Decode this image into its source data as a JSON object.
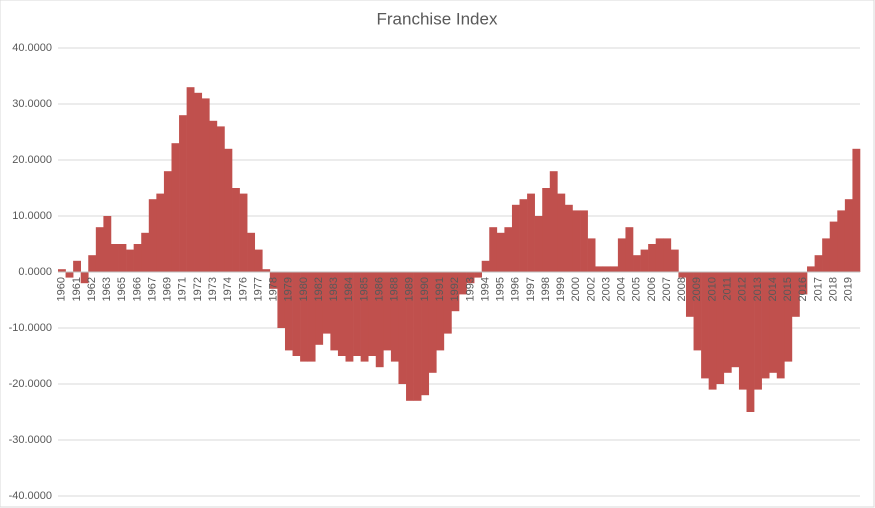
{
  "chart_data": {
    "type": "bar",
    "title": "Franchise Index",
    "categories": [
      "1960",
      null,
      "1961",
      null,
      "1962",
      null,
      "1963",
      null,
      "1965",
      null,
      "1966",
      null,
      "1967",
      null,
      "1969",
      null,
      "1971",
      null,
      "1972",
      null,
      "1973",
      null,
      "1974",
      null,
      "1976",
      null,
      "1977",
      null,
      "1978",
      null,
      "1979",
      null,
      "1980",
      null,
      "1982",
      null,
      "1983",
      null,
      "1984",
      null,
      "1985",
      null,
      "1986",
      null,
      "1988",
      null,
      "1989",
      null,
      "1990",
      null,
      "1991",
      null,
      "1992",
      null,
      "1993",
      null,
      "1994",
      null,
      "1995",
      null,
      "1996",
      null,
      "1997",
      null,
      "1998",
      null,
      "1999",
      null,
      "2000",
      null,
      "2002",
      null,
      "2003",
      null,
      "2004",
      null,
      "2005",
      null,
      "2006",
      null,
      "2007",
      null,
      "2008",
      null,
      "2009",
      null,
      "2010",
      null,
      "2011",
      null,
      "2012",
      null,
      "2013",
      null,
      "2014",
      null,
      "2015",
      null,
      "2016",
      null,
      "2017",
      null,
      "2018",
      null,
      "2019",
      null
    ],
    "values": [
      0.5,
      -1,
      2,
      -2,
      3,
      8,
      10,
      5,
      5,
      4,
      5,
      7,
      13,
      14,
      18,
      23,
      28,
      33,
      32,
      31,
      27,
      26,
      22,
      15,
      14,
      7,
      4,
      0.5,
      -3,
      -10,
      -14,
      -15,
      -16,
      -16,
      -13,
      -11,
      -14,
      -15,
      -16,
      -15,
      -16,
      -15,
      -17,
      -14,
      -16,
      -20,
      -23,
      -23,
      -22,
      -18,
      -14,
      -11,
      -7,
      -4,
      -2,
      -1,
      2,
      8,
      7,
      8,
      12,
      13,
      14,
      10,
      15,
      18,
      14,
      12,
      11,
      11,
      6,
      1,
      1,
      1,
      6,
      8,
      3,
      4,
      5,
      6,
      6,
      4,
      -1,
      -8,
      -14,
      -19,
      -21,
      -20,
      -18,
      -17,
      -21,
      -25,
      -21,
      -19,
      -18,
      -19,
      -16,
      -8,
      -4,
      1,
      3,
      6,
      9,
      11,
      13,
      22
    ],
    "color": "#c0504d",
    "ylim": [
      -40,
      40
    ],
    "yticks": [
      {
        "value": -40,
        "label": "-40.0000"
      },
      {
        "value": -30,
        "label": "-30.0000"
      },
      {
        "value": -20,
        "label": "-20.0000"
      },
      {
        "value": -10,
        "label": "-10.0000"
      },
      {
        "value": 0,
        "label": "0.0000"
      },
      {
        "value": 10,
        "label": "10.0000"
      },
      {
        "value": 20,
        "label": "20.0000"
      },
      {
        "value": 30,
        "label": "30.0000"
      },
      {
        "value": 40,
        "label": "40.0000"
      }
    ],
    "grid": true
  }
}
